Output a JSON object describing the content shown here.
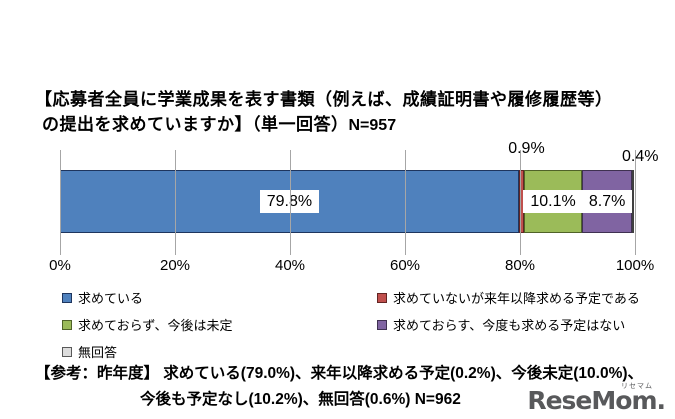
{
  "title": {
    "line1": "【応募者全員に学業成果を表す書類（例えば、成績証明書や履修履歴等）",
    "line2": "の提出を求めていますか】（単一回答）",
    "n_label": "N=957"
  },
  "chart_data": {
    "type": "bar",
    "orientation": "horizontal",
    "stacked": true,
    "title": "応募者全員に学業成果を表す書類（例えば、成績証明書や履修履歴等）の提出を求めていますか（単一回答）",
    "n": "N=957",
    "xlim": [
      0,
      100
    ],
    "x_ticks": [
      "0%",
      "20%",
      "40%",
      "60%",
      "80%",
      "100%"
    ],
    "grid": true,
    "legend_position": "bottom-two-columns",
    "series": [
      {
        "name": "求めている",
        "value": 79.8,
        "label": "79.8%",
        "color": "#4F81BD",
        "border": "#1E355E",
        "label_position": "inside"
      },
      {
        "name": "求めていないが来年以降求める予定である",
        "value": 0.9,
        "label": "0.9%",
        "color": "#C0504D",
        "border": "#632523",
        "label_position": "above",
        "label_dx": 5,
        "label_dy": -10
      },
      {
        "name": "求めておらず、今後は未定",
        "value": 10.1,
        "label": "10.1%",
        "color": "#9BBB59",
        "border": "#4F6228",
        "label_position": "inside"
      },
      {
        "name": "求めておらす、今度も求める予定はない",
        "value": 8.7,
        "label": "8.7%",
        "color": "#8064A2",
        "border": "#3F3151",
        "label_position": "inside"
      },
      {
        "name": "無回答",
        "value": 0.4,
        "label": "0.4%",
        "color": "#FFFFFF",
        "border": "#404040",
        "label_position": "above",
        "label_dx": 7,
        "label_dy": -2
      }
    ]
  },
  "legend": {
    "items": [
      {
        "label": "求めている",
        "color": "#4F81BD",
        "border": "#1E355E",
        "col": 0,
        "row": 0
      },
      {
        "label": "求めていないが来年以降求める予定である",
        "color": "#C0504D",
        "border": "#632523",
        "col": 1,
        "row": 0
      },
      {
        "label": "求めておらず、今後は未定",
        "color": "#9BBB59",
        "border": "#4F6228",
        "col": 0,
        "row": 1
      },
      {
        "label": "求めておらす、今度も求める予定はない",
        "color": "#8064A2",
        "border": "#3F3151",
        "col": 1,
        "row": 1
      },
      {
        "label": "無回答",
        "color": "#DDDDDD",
        "border": "#595959",
        "col": 0,
        "row": 2
      }
    ]
  },
  "note": {
    "line1": "【参考：昨年度】 求めている(79.0%)、来年以降求める予定(0.2%)、今後未定(10.0%)、",
    "line2": "今後も予定なし(10.2%)、無回答(0.6%) N=962"
  },
  "logo": {
    "text": "ReseMom.",
    "ruby": "リセマム"
  }
}
